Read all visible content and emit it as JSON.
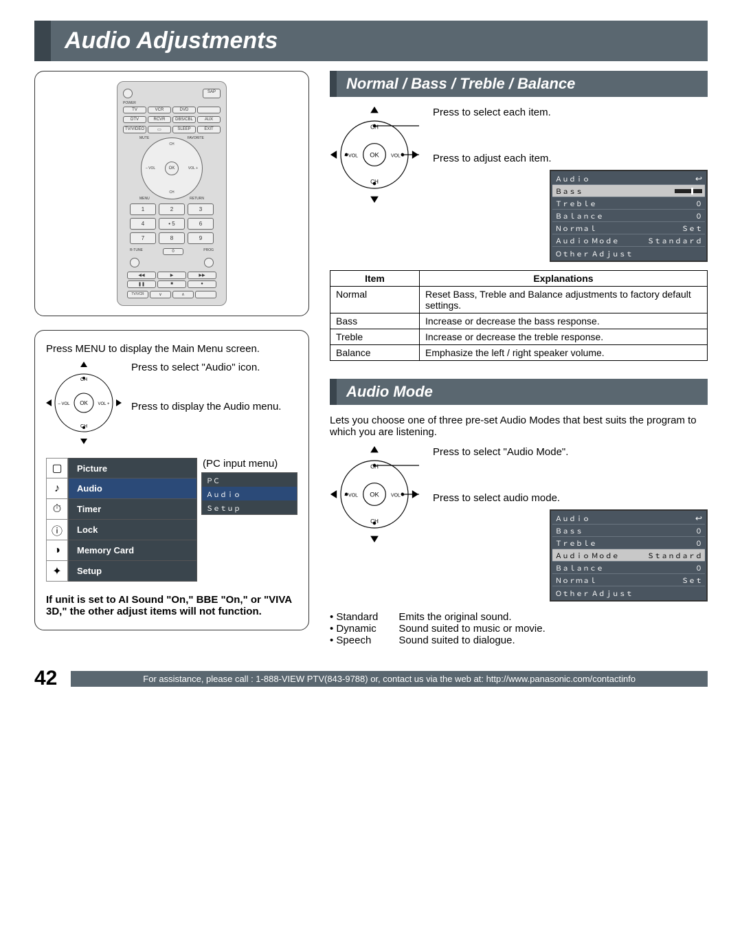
{
  "page": {
    "title": "Audio Adjustments",
    "number": "42",
    "footer": "For assistance, please call : 1-888-VIEW PTV(843-9788) or, contact us via the web at: http://www.panasonic.com/contactinfo"
  },
  "colors": {
    "header_bg": "#5a6770",
    "header_accent": "#3a454d",
    "osd_bg": "#4a5560",
    "osd_sel_bg": "#c8c8c8",
    "menu_blue": "#2b4a78",
    "menu_dark": "#3a454d",
    "pc_blue": "#2b4a78",
    "pc_dark": "#3a454d"
  },
  "remote": {
    "labels": {
      "power": "POWER",
      "sap": "SAP",
      "light": "LIGHT",
      "row1": [
        "TV",
        "VCR",
        "DVD",
        ""
      ],
      "row2": [
        "DTV",
        "RCVR",
        "DBS/CBL",
        "AUX"
      ],
      "row3": [
        "TV/VIDEO",
        "",
        "SLEEP",
        "EXIT"
      ],
      "diag": [
        "MUTE",
        "ASPECT",
        "FAVORITE",
        "RECALL"
      ],
      "nav": {
        "ok": "OK",
        "ch_up": "CH",
        "ch_dn": "CH",
        "vol_l": "– VOL",
        "vol_r": "VOL +",
        "menu": "MENU",
        "return": "RETURN"
      },
      "nums": [
        "1",
        "2",
        "3",
        "4",
        "• 5",
        "6",
        "7",
        "8",
        "9"
      ],
      "rtune": "R-TUNE",
      "zero": "0",
      "prog": "PROG",
      "trans": [
        "REW",
        "PLAY",
        "FF",
        "PAUSE",
        "STOP",
        "REC"
      ],
      "bottom": [
        "TV/VCR",
        "SPLIT",
        "SWAP",
        "",
        "OPEN/CLOSE",
        ""
      ]
    }
  },
  "instructions": {
    "intro": "Press MENU to display the Main Menu screen.",
    "step1": "Press to select \"Audio\" icon.",
    "step2": "Press to display the Audio menu.",
    "pc_label": "(PC input menu)",
    "pc_menu": [
      "ＰＣ",
      "Ａｕｄｉｏ",
      "Ｓｅｔｕｐ"
    ],
    "main_menu": [
      "Picture",
      "Audio",
      "Timer",
      "Lock",
      "Memory Card",
      "Setup"
    ],
    "note": "If unit is set to AI Sound \"On,\" BBE \"On,\" or \"VIVA 3D,\" the other adjust items will not function."
  },
  "section_nbtb": {
    "title": "Normal / Bass / Treble / Balance",
    "cap1": "Press to select each item.",
    "cap2": "Press to adjust each item.",
    "osd": {
      "header": "Ａｕｄｉｏ",
      "returnGlyph": "↩",
      "rows": [
        {
          "label": "Ｂａｓｓ",
          "value": "",
          "slider": true,
          "sel": true
        },
        {
          "label": "Ｔｒｅｂｌｅ",
          "value": "０"
        },
        {
          "label": "Ｂａｌａｎｃｅ",
          "value": "０"
        },
        {
          "label": "Ｎｏｒｍａｌ",
          "value": "Ｓｅｔ"
        },
        {
          "label": "Ａｕｄｉｏ Ｍｏｄｅ",
          "value": "Ｓｔａｎｄａｒｄ"
        },
        {
          "label": "Ｏｔｈｅｒ Ａｄｊｕｓｔ",
          "value": ""
        }
      ]
    },
    "table": {
      "head": [
        "Item",
        "Explanations"
      ],
      "rows": [
        [
          "Normal",
          "Reset Bass, Treble and Balance adjustments to factory default settings."
        ],
        [
          "Bass",
          "Increase or decrease the bass response."
        ],
        [
          "Treble",
          "Increase or decrease the treble response."
        ],
        [
          "Balance",
          "Emphasize the left / right speaker volume."
        ]
      ]
    }
  },
  "section_mode": {
    "title": "Audio Mode",
    "desc": "Lets you choose one of three pre-set Audio Modes that best suits the program to which you are listening.",
    "cap1": "Press to select \"Audio Mode\".",
    "cap2": "Press to select audio mode.",
    "osd": {
      "header": "Ａｕｄｉｏ",
      "returnGlyph": "↩",
      "rows": [
        {
          "label": "Ｂａｓｓ",
          "value": "０"
        },
        {
          "label": "Ｔｒｅｂｌｅ",
          "value": "０"
        },
        {
          "label": "Ａｕｄｉｏ Ｍｏｄｅ",
          "value": "Ｓｔａｎｄａｒｄ",
          "sel": true
        },
        {
          "label": "Ｂａｌａｎｃｅ",
          "value": "０"
        },
        {
          "label": "Ｎｏｒｍａｌ",
          "value": "Ｓｅｔ"
        },
        {
          "label": "Ｏｔｈｅｒ Ａｄｊｕｓｔ",
          "value": ""
        }
      ]
    },
    "modes": {
      "names": [
        "Standard",
        "Dynamic",
        "Speech"
      ],
      "desc": [
        "Emits the original sound.",
        "Sound suited to music or movie.",
        "Sound suited to dialogue."
      ]
    }
  }
}
